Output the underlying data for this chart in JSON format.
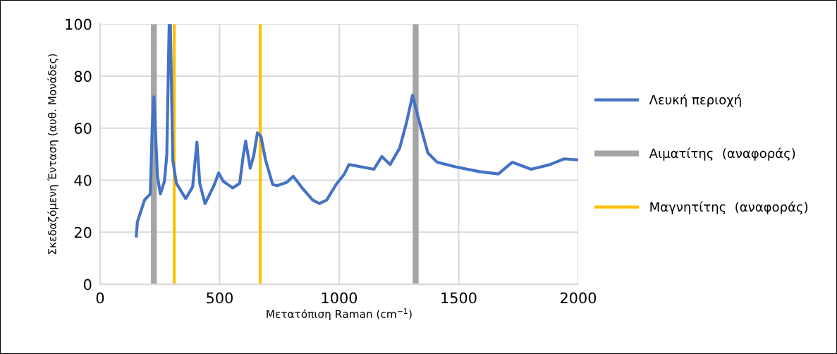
{
  "chart_data": {
    "type": "line",
    "xlabel": "Μετατόπιση Raman (cm$^{−1}$)",
    "ylabel": "Σκεδαζόμενη Ένταση (αυθ. Μονάδες)",
    "xlim": [
      0,
      2000
    ],
    "xticks": [
      0,
      500,
      1000,
      1500,
      2000
    ],
    "ylim": [
      0,
      100
    ],
    "yticks": [
      0,
      20,
      40,
      60,
      80,
      100
    ],
    "grid": true,
    "legend": "right",
    "series": [
      {
        "name": "Λευκή περιοχή",
        "color": "#4472c4",
        "x": [
          151,
          156,
          186,
          210,
          218,
          225,
          240,
          252,
          269,
          279,
          289,
          294,
          304,
          319,
          358,
          387,
          405,
          417,
          439,
          476,
          496,
          515,
          555,
          584,
          599,
          609,
          628,
          643,
          658,
          673,
          692,
          722,
          741,
          781,
          808,
          850,
          889,
          918,
          948,
          987,
          1022,
          1041,
          1095,
          1145,
          1179,
          1213,
          1253,
          1282,
          1307,
          1336,
          1371,
          1410,
          1489,
          1587,
          1666,
          1724,
          1803,
          1882,
          1941,
          2000
        ],
        "values": [
          18,
          24,
          32.4,
          34.7,
          60,
          72,
          41.5,
          34.7,
          39.6,
          49.6,
          100,
          100,
          47.8,
          38.8,
          32.9,
          37.4,
          54.6,
          38.8,
          31,
          37.9,
          42.8,
          39.6,
          37,
          38.8,
          49.6,
          55,
          44.6,
          49.6,
          58.2,
          56.8,
          47.8,
          38.3,
          37.9,
          39.2,
          41.5,
          36.5,
          32.4,
          31,
          32.4,
          38.3,
          42.4,
          46,
          45.1,
          44.2,
          49.1,
          46,
          52.3,
          62.2,
          72.6,
          62.2,
          50.5,
          46.9,
          45.1,
          43.3,
          42.4,
          46.9,
          44.2,
          46,
          48.2,
          47.8
        ]
      },
      {
        "name": "Αιματίτης  (αναφοράς)",
        "color": "#a5a5a5",
        "x": [
          225,
          225
        ],
        "values": [
          0,
          100
        ]
      },
      {
        "color": "#a5a5a5",
        "x": [
          1320,
          1320
        ],
        "values": [
          0,
          100
        ]
      },
      {
        "name": "Μαγνητίτης  (αναφοράς)",
        "color": "#ffc000",
        "x": [
          310,
          310
        ],
        "values": [
          0,
          100
        ]
      },
      {
        "color": "#ffc000",
        "x": [
          670,
          670
        ],
        "values": [
          0,
          100
        ]
      }
    ]
  }
}
